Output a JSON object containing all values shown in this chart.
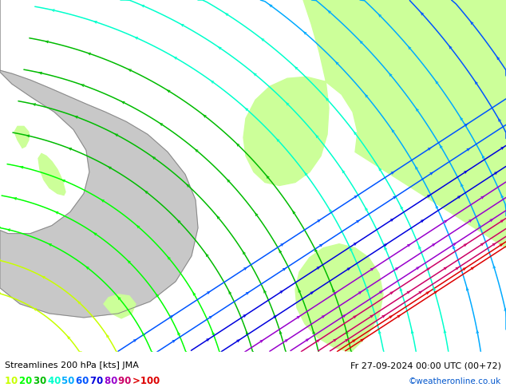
{
  "title_left": "Streamlines 200 hPa [kts] JMA",
  "title_right": "Fr 27-09-2024 00:00 UTC (00+72)",
  "credit": "©weatheronline.co.uk",
  "legend_values": [
    "10",
    "20",
    "30",
    "40",
    "50",
    "60",
    "70",
    "80",
    "90",
    ">100"
  ],
  "legend_colors": [
    "#c8ff00",
    "#00ff00",
    "#00bb00",
    "#00ffcc",
    "#00aaff",
    "#0055ff",
    "#0000dd",
    "#9900cc",
    "#cc0066",
    "#dd0000"
  ],
  "bg_color": "#c8c8c8",
  "land_color": "#ccff99",
  "coast_color": "#888888",
  "figsize": [
    6.34,
    4.9
  ],
  "dpi": 100,
  "speed_colors": [
    "#c8ff00",
    "#00ff00",
    "#00bb00",
    "#00ffcc",
    "#00aaff",
    "#0055ff",
    "#0000dd",
    "#9900cc",
    "#cc0066",
    "#dd0000"
  ]
}
